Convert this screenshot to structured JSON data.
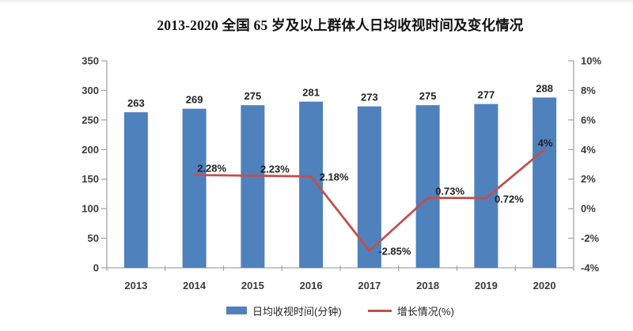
{
  "chart_data": {
    "type": "combo-bar-line",
    "title": "2013-2020 全国 65 岁及以上群体人日均收视时间及变化情况",
    "categories": [
      "2013",
      "2014",
      "2015",
      "2016",
      "2017",
      "2018",
      "2019",
      "2020"
    ],
    "series": [
      {
        "name": "日均收视时间(分钟)",
        "type": "bar",
        "axis": "left",
        "color": "#4f81bd",
        "values": [
          263,
          269,
          275,
          281,
          273,
          275,
          277,
          288
        ],
        "data_labels": [
          "263",
          "269",
          "275",
          "281",
          "273",
          "275",
          "277",
          "288"
        ]
      },
      {
        "name": "增长情况(%)",
        "type": "line",
        "axis": "right",
        "color": "#c0504d",
        "values": [
          null,
          2.28,
          2.23,
          2.18,
          -2.85,
          0.73,
          0.72,
          4
        ],
        "data_labels": [
          "",
          "2.28%",
          "2.23%",
          "2.18%",
          "-2.85%",
          "0.73%",
          "0.72%",
          "4%"
        ]
      }
    ],
    "left_axis": {
      "min": 0,
      "max": 350,
      "step": 50,
      "tick_labels": [
        "0",
        "50",
        "100",
        "150",
        "200",
        "250",
        "300",
        "350"
      ]
    },
    "right_axis": {
      "min": -4,
      "max": 10,
      "step": 2,
      "tick_labels": [
        "-4%",
        "-2%",
        "0%",
        "2%",
        "4%",
        "6%",
        "8%",
        "10%"
      ]
    },
    "legend_position": "bottom",
    "grid": false
  },
  "colors": {
    "bar": "#4f81bd",
    "line": "#c0504d",
    "axis": "#a6a6a6",
    "tick_text": "#3b3b3b",
    "label_text": "#222222",
    "title_text": "#111111"
  }
}
